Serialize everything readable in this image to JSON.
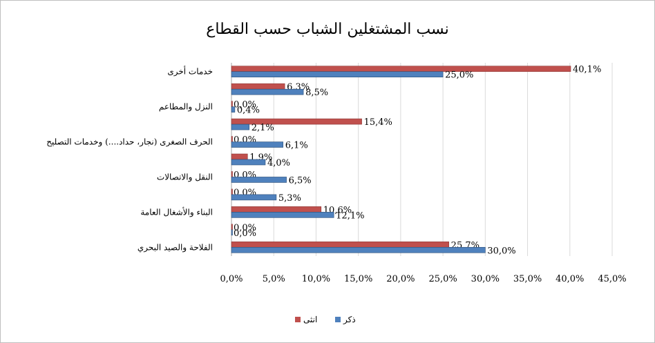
{
  "chart_data": {
    "type": "bar",
    "orientation": "horizontal",
    "title": "نسب المشتغلين الشباب حسب القطاع",
    "categories": [
      "الفلاحة والصيد البحري",
      "",
      "البناء والأشغال العامة",
      "",
      "النقل والاتصالات",
      "",
      "الحرف الصغرى (نجار، حداد....) وخدمات التصليح",
      "",
      "النزل والمطاعم",
      "",
      "خدمات أخرى"
    ],
    "series": [
      {
        "name": "ذكر",
        "color": "#4f81bd",
        "values": [
          30.0,
          0.0,
          12.1,
          5.3,
          6.5,
          4.0,
          6.1,
          2.1,
          0.4,
          8.5,
          25.0
        ],
        "labels": [
          "30,0%",
          "0,0%",
          "12,1%",
          "5,3%",
          "6,5%",
          "4,0%",
          "6,1%",
          "2,1%",
          "0,4%",
          "8,5%",
          "25,0%"
        ]
      },
      {
        "name": "انثى",
        "color": "#c0504d",
        "values": [
          25.7,
          0.0,
          10.6,
          0.0,
          0.0,
          1.9,
          0.0,
          15.4,
          0.0,
          6.3,
          40.1
        ],
        "labels": [
          "25,7%",
          "0,0%",
          "10,6%",
          "0,0%",
          "0,0%",
          "1,9%",
          "0,0%",
          "15,4%",
          "0,0%",
          "6,3%",
          "40,1%"
        ]
      }
    ],
    "xlim": [
      0,
      45
    ],
    "ticks": [
      0,
      5,
      10,
      15,
      20,
      25,
      30,
      35,
      40,
      45
    ],
    "tick_labels": [
      "0,0%",
      "5,0%",
      "10,0%",
      "15,0%",
      "20,0%",
      "25,0%",
      "30,0%",
      "35,0%",
      "40,0%",
      "45,0%"
    ],
    "grid": true,
    "legend": "bottom"
  }
}
